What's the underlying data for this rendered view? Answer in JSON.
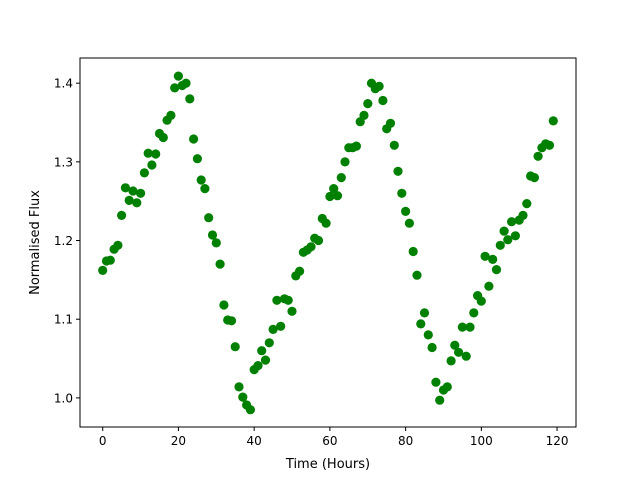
{
  "chart_data": {
    "type": "scatter",
    "title": "",
    "xlabel": "Time (Hours)",
    "ylabel": "Normalised Flux",
    "xlim": [
      -6,
      125
    ],
    "ylim": [
      0.963,
      1.432
    ],
    "xticks": [
      0,
      20,
      40,
      60,
      80,
      100,
      120
    ],
    "xtick_labels": [
      "0",
      "20",
      "40",
      "60",
      "80",
      "100",
      "120"
    ],
    "yticks": [
      1.0,
      1.1,
      1.2,
      1.3,
      1.4
    ],
    "ytick_labels": [
      "1.0",
      "1.1",
      "1.2",
      "1.3",
      "1.4"
    ],
    "grid": false,
    "marker_color": "#008000",
    "series": [
      {
        "x": [
          0,
          1,
          2,
          3,
          4,
          5,
          6,
          7,
          8,
          9,
          10,
          11,
          12,
          13,
          14,
          15,
          16,
          17,
          18,
          19,
          20,
          21,
          22,
          23,
          24,
          25,
          26,
          27,
          28,
          29,
          30,
          31,
          32,
          33,
          34,
          35,
          36,
          37,
          38,
          39,
          40,
          41,
          42,
          43,
          44,
          45,
          46,
          47,
          48,
          49,
          50,
          51,
          52,
          53,
          54,
          55,
          56,
          57,
          58,
          59,
          60,
          61,
          62,
          63,
          64,
          65,
          66,
          67,
          68,
          69,
          70,
          71,
          72,
          73,
          74,
          75,
          76,
          77,
          78,
          79,
          80,
          81,
          82,
          83,
          84,
          85,
          86,
          87,
          88,
          89,
          90,
          91,
          92,
          93,
          94,
          95,
          96,
          97,
          98,
          99,
          100,
          101,
          102,
          103,
          104,
          105,
          106,
          107,
          108,
          109,
          110,
          111,
          112,
          113,
          114,
          115,
          116,
          117,
          118,
          119
        ],
        "y": [
          1.162,
          1.174,
          1.175,
          1.189,
          1.194,
          1.232,
          1.267,
          1.251,
          1.263,
          1.248,
          1.26,
          1.286,
          1.311,
          1.296,
          1.31,
          1.336,
          1.331,
          1.353,
          1.359,
          1.394,
          1.409,
          1.397,
          1.4,
          1.38,
          1.329,
          1.304,
          1.277,
          1.266,
          1.229,
          1.207,
          1.197,
          1.17,
          1.118,
          1.099,
          1.098,
          1.065,
          1.014,
          1.001,
          0.991,
          0.985,
          1.036,
          1.041,
          1.06,
          1.048,
          1.07,
          1.087,
          1.124,
          1.091,
          1.126,
          1.124,
          1.11,
          1.155,
          1.161,
          1.185,
          1.188,
          1.192,
          1.203,
          1.2,
          1.228,
          1.222,
          1.256,
          1.266,
          1.257,
          1.28,
          1.3,
          1.318,
          1.318,
          1.32,
          1.351,
          1.359,
          1.374,
          1.4,
          1.393,
          1.396,
          1.378,
          1.342,
          1.349,
          1.321,
          1.288,
          1.26,
          1.237,
          1.222,
          1.186,
          1.156,
          1.094,
          1.108,
          1.08,
          1.064,
          1.02,
          0.997,
          1.01,
          1.014,
          1.047,
          1.067,
          1.058,
          1.09,
          1.053,
          1.09,
          1.108,
          1.13,
          1.123,
          1.18,
          1.142,
          1.176,
          1.163,
          1.194,
          1.212,
          1.201,
          1.224,
          1.206,
          1.226,
          1.232,
          1.247,
          1.282,
          1.28,
          1.307,
          1.318,
          1.323,
          1.321,
          1.352
        ]
      }
    ]
  }
}
